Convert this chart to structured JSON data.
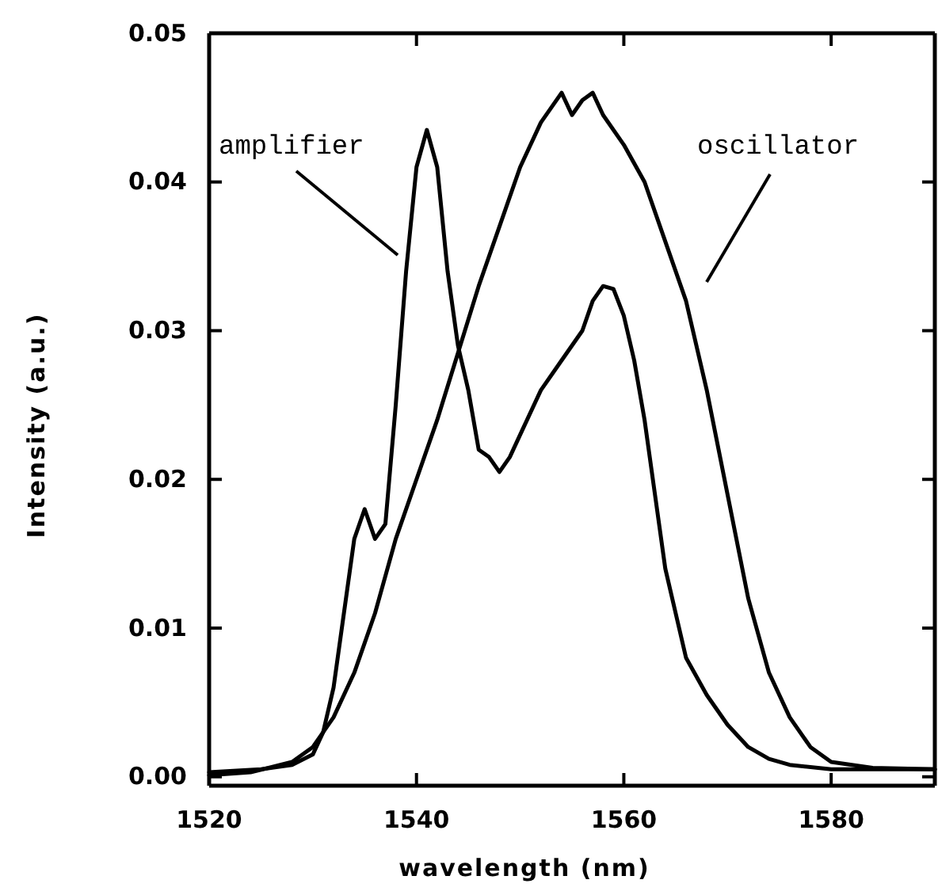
{
  "chart_data": {
    "type": "line",
    "xlabel": "wavelength (nm)",
    "ylabel": "Intensity (a.u.)",
    "xlim": [
      1520,
      1590
    ],
    "xticks": [
      1520,
      1540,
      1560,
      1580
    ],
    "ylim": [
      -0.0006,
      0.05
    ],
    "yticks": [
      {
        "value": 0,
        "label": "0.00"
      },
      0.01,
      0.02,
      0.03,
      0.04,
      0.05
    ],
    "grid": false,
    "marker": "none",
    "line_style": "solid",
    "series": [
      {
        "color": "#000000",
        "x": [
          1520,
          1525,
          1528,
          1530,
          1531,
          1532,
          1533,
          1534,
          1535,
          1536,
          1537,
          1538,
          1539,
          1540,
          1541,
          1542,
          1543,
          1544,
          1545,
          1546,
          1547,
          1548,
          1549,
          1550,
          1552,
          1554,
          1556,
          1557,
          1558,
          1559,
          1560,
          1561,
          1562,
          1563,
          1564,
          1565,
          1566,
          1568,
          1570,
          1572,
          1574,
          1576,
          1580,
          1590
        ],
        "values": [
          0.0003,
          0.0005,
          0.0008,
          0.0015,
          0.003,
          0.006,
          0.011,
          0.016,
          0.018,
          0.016,
          0.017,
          0.025,
          0.034,
          0.041,
          0.0435,
          0.041,
          0.034,
          0.029,
          0.026,
          0.022,
          0.0215,
          0.0205,
          0.0215,
          0.023,
          0.026,
          0.028,
          0.03,
          0.032,
          0.033,
          0.0328,
          0.031,
          0.028,
          0.024,
          0.019,
          0.014,
          0.011,
          0.008,
          0.0055,
          0.0035,
          0.002,
          0.0012,
          0.0008,
          0.0005,
          0.0005
        ]
      },
      {
        "color": "#000000",
        "x": [
          1520,
          1524,
          1528,
          1530,
          1532,
          1534,
          1536,
          1538,
          1540,
          1542,
          1544,
          1546,
          1548,
          1550,
          1552,
          1553,
          1554,
          1555,
          1556,
          1557,
          1558,
          1560,
          1562,
          1564,
          1566,
          1568,
          1570,
          1572,
          1574,
          1576,
          1578,
          1580,
          1584,
          1590
        ],
        "values": [
          0.0001,
          0.0003,
          0.001,
          0.002,
          0.004,
          0.007,
          0.011,
          0.016,
          0.02,
          0.024,
          0.0285,
          0.033,
          0.037,
          0.041,
          0.044,
          0.045,
          0.046,
          0.0445,
          0.0455,
          0.046,
          0.0445,
          0.0425,
          0.04,
          0.036,
          0.032,
          0.026,
          0.019,
          0.012,
          0.007,
          0.004,
          0.002,
          0.001,
          0.0006,
          0.0005
        ]
      }
    ],
    "annotations": [
      "amplifier",
      "oscillator"
    ]
  }
}
